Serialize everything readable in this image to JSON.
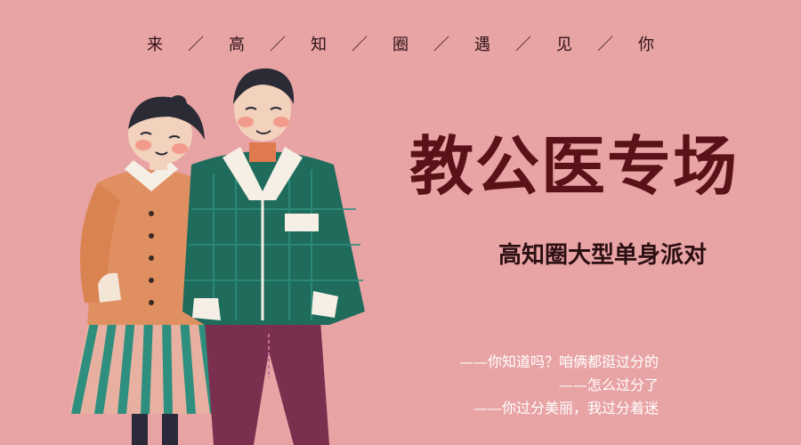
{
  "header": {
    "slogan_chars": [
      "来",
      "高",
      "知",
      "圈",
      "遇",
      "见",
      "你"
    ],
    "separator": "／"
  },
  "title": {
    "main": "教公医专场",
    "subtitle": "高知圈大型单身派对"
  },
  "quotes": [
    "——你知道吗？咱俩都挺过分的",
    "——怎么过分了",
    "——你过分美丽，我过分着迷"
  ],
  "colors": {
    "background": "#e8a3a4",
    "title": "#5a1118",
    "subtitle": "#2b0f12",
    "quote_text": "#ffffff",
    "man_jacket": "#1f6b5c",
    "woman_jacket": "#e09060",
    "woman_skirt_stripe": "#2e8f7e",
    "man_pants": "#7a2f4f"
  }
}
